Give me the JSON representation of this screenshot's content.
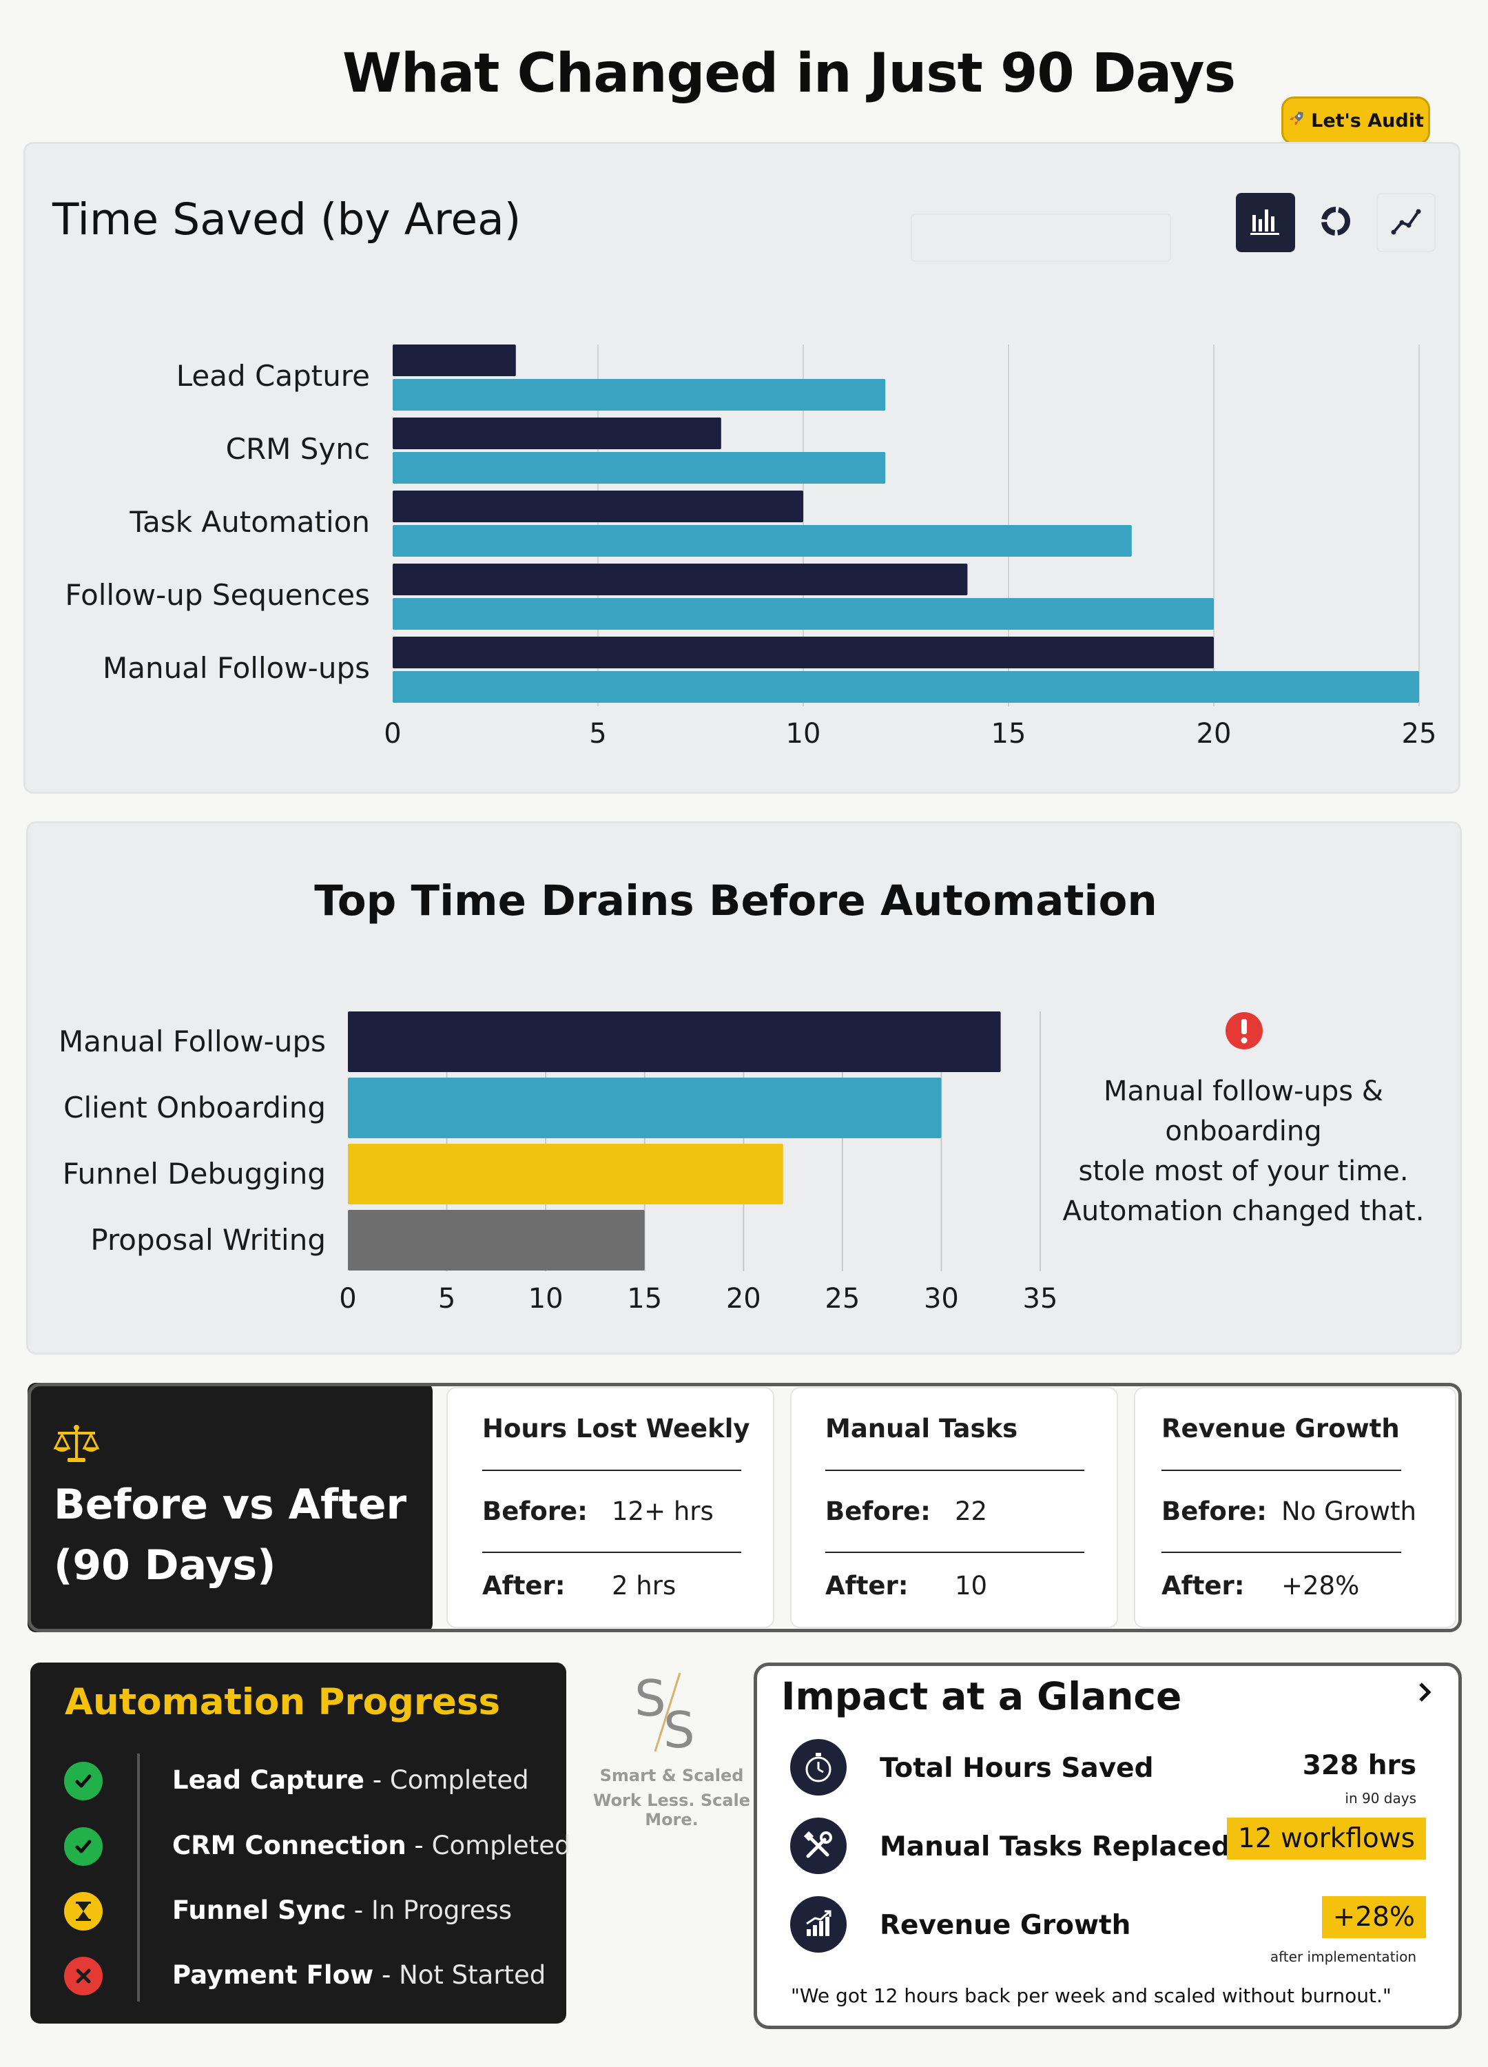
{
  "page": {
    "title": "What Changed in Just 90 Days"
  },
  "audit_button": {
    "icon": "rocket-icon",
    "label": "Let's Audit",
    "color": "#f4c20d"
  },
  "time_saved": {
    "title": "Time Saved (by Area)",
    "toolbar": [
      {
        "icon": "bar-chart-icon",
        "active": true
      },
      {
        "icon": "donut-chart-icon",
        "active": false
      },
      {
        "icon": "line-chart-icon",
        "active": false
      }
    ]
  },
  "top_drains": {
    "title": "Top Time Drains Before Automation",
    "note_icon": "alert-icon",
    "note_lines": [
      "Manual follow-ups &",
      "onboarding",
      "stole most of your time.",
      "Automation changed that."
    ]
  },
  "chart_data": [
    {
      "type": "bar",
      "orientation": "horizontal",
      "title": "Time Saved (by Area)",
      "categories": [
        "Lead Capture",
        "CRM Sync",
        "Task Automation",
        "Follow-up Sequences",
        "Manual Follow-ups"
      ],
      "series": [
        {
          "values": [
            3,
            8,
            10,
            14,
            20
          ],
          "color": "#1c1f3d"
        },
        {
          "values": [
            12,
            12,
            18,
            20,
            25
          ],
          "color": "#3aa3c2"
        }
      ],
      "xlim": [
        0,
        25
      ],
      "xticks": [
        0,
        5,
        10,
        15,
        20,
        25
      ],
      "grid": true,
      "legend": "none"
    },
    {
      "type": "bar",
      "orientation": "horizontal",
      "title": "Top Time Drains Before Automation",
      "categories": [
        "Manual Follow-ups",
        "Client Onboarding",
        "Funnel Debugging",
        "Proposal Writing"
      ],
      "values": [
        33,
        30,
        22,
        15
      ],
      "colors": [
        "#1c1f3d",
        "#3aa3c2",
        "#f0c30f",
        "#6e6e6e"
      ],
      "xlim": [
        0,
        35
      ],
      "xticks": [
        0,
        5,
        10,
        15,
        20,
        25,
        30,
        35
      ],
      "grid": true,
      "legend": "none"
    }
  ],
  "before_after": {
    "icon": "scale-icon",
    "title_line1": "Before vs After",
    "title_line2": "(90 Days)",
    "cards": [
      {
        "title": "Hours Lost Weekly",
        "before_label": "Before:",
        "before_value": "12+ hrs",
        "after_label": "After:",
        "after_value": "2 hrs"
      },
      {
        "title": "Manual Tasks",
        "before_label": "Before:",
        "before_value": "22",
        "after_label": "After:",
        "after_value": "10"
      },
      {
        "title": "Revenue Growth",
        "before_label": "Before:",
        "before_value": "No Growth",
        "after_label": "After:",
        "after_value": "+28%"
      }
    ]
  },
  "progress": {
    "title": "Automation Progress",
    "items": [
      {
        "name": "Lead Capture",
        "status": "Completed",
        "icon": "check-icon",
        "color": "#22b04b"
      },
      {
        "name": "CRM Connection",
        "status": "Completed",
        "icon": "check-icon",
        "color": "#22b04b"
      },
      {
        "name": "Funnel Sync",
        "status": "In Progress",
        "icon": "hourglass-icon",
        "color": "#f4c20d"
      },
      {
        "name": "Payment Flow",
        "status": "Not Started",
        "icon": "x-icon",
        "color": "#e53935"
      }
    ]
  },
  "logo": {
    "brand": "Smart & Scaled",
    "tagline": "Work Less. Scale More."
  },
  "impact": {
    "title": "Impact at a Glance",
    "rows": [
      {
        "icon": "stopwatch-icon",
        "label": "Total Hours Saved",
        "value": "328 hrs",
        "sub": "in 90 days"
      },
      {
        "icon": "tools-icon",
        "label": "Manual Tasks Replaced",
        "value": "12 workflows",
        "sub": ""
      },
      {
        "icon": "growth-icon",
        "label": "Revenue Growth",
        "value": "+28%",
        "sub": "after implementation"
      }
    ],
    "quote": "\"We got 12 hours back per week and scaled without burnout.\""
  }
}
